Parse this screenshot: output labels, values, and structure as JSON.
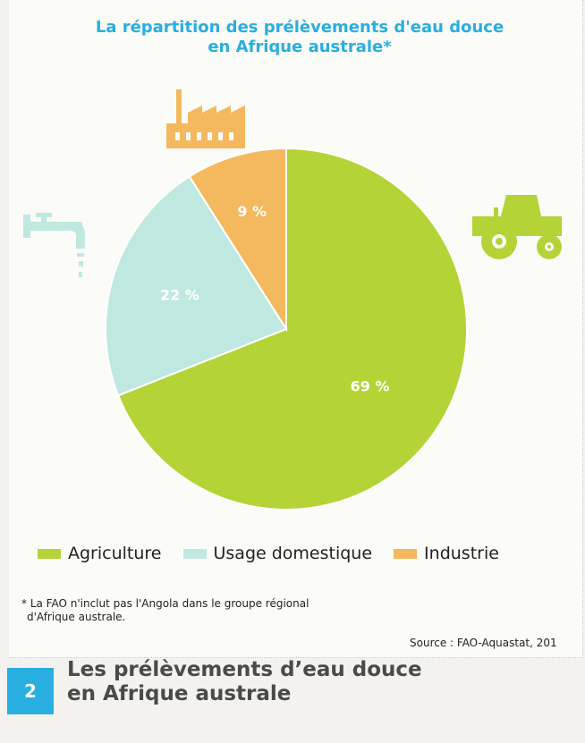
{
  "title_line1": "La répartition des prélèvements d'eau douce",
  "title_line2": "en Afrique australe*",
  "colors": {
    "agriculture": "#b3d336",
    "domestique": "#bfe8e0",
    "industrie": "#f4b85e",
    "accent": "#28aee0"
  },
  "icons": {
    "agriculture": "tractor-icon",
    "domestique": "tap-icon",
    "industrie": "factory-icon"
  },
  "chart_data": {
    "type": "pie",
    "title": "La répartition des prélèvements d'eau douce en Afrique australe*",
    "categories": [
      "Agriculture",
      "Usage domestique",
      "Industrie"
    ],
    "values": [
      69,
      22,
      9
    ],
    "labels": [
      "69 %",
      "22 %",
      "9 %"
    ],
    "legend_position": "bottom"
  },
  "footnote_line1": "* La FAO n'inclut pas l'Angola dans le groupe régional",
  "footnote_line2": "d'Afrique australe.",
  "source": "Source : FAO-Aquastat, 201",
  "doc_number": "2",
  "doc_title_line1": "Les prélèvements d’eau douce",
  "doc_title_line2": "en Afrique australe"
}
